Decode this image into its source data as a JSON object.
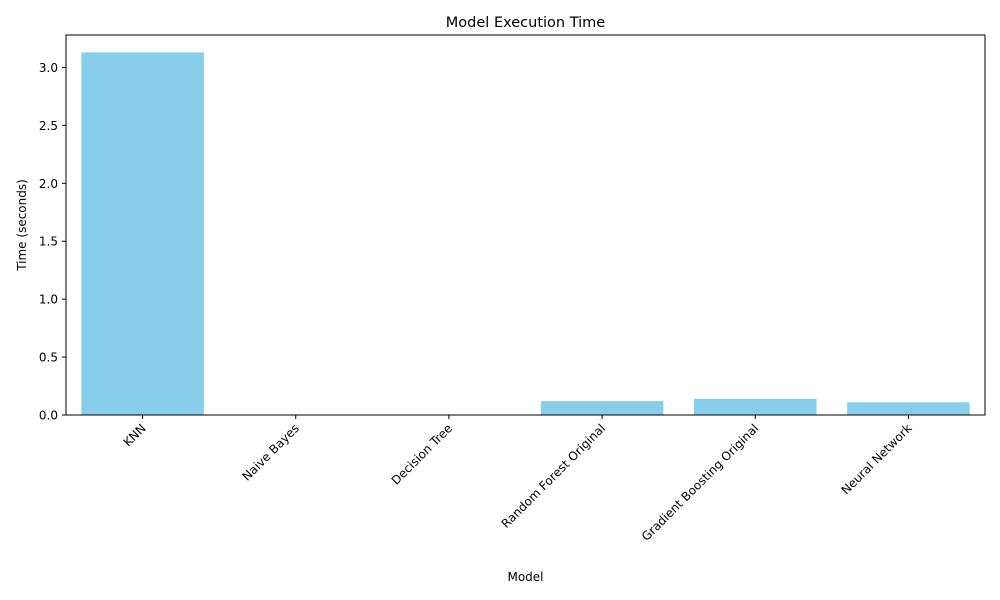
{
  "chart_data": {
    "type": "bar",
    "title": "Model Execution Time",
    "xlabel": "Model",
    "ylabel": "Time (seconds)",
    "categories": [
      "KNN",
      "Naive Bayes",
      "Decision Tree",
      "Random Forest Original",
      "Gradient Boosting Original",
      "Neural Network"
    ],
    "values": [
      3.13,
      0.0,
      0.0,
      0.12,
      0.14,
      0.11
    ],
    "ylim": [
      0,
      3.28
    ],
    "yticks": [
      0.0,
      0.5,
      1.0,
      1.5,
      2.0,
      2.5,
      3.0
    ],
    "ytick_labels": [
      "0.0",
      "0.5",
      "1.0",
      "1.5",
      "2.0",
      "2.5",
      "3.0"
    ],
    "bar_color": "#87ceeb",
    "grid": false,
    "legend": false
  }
}
